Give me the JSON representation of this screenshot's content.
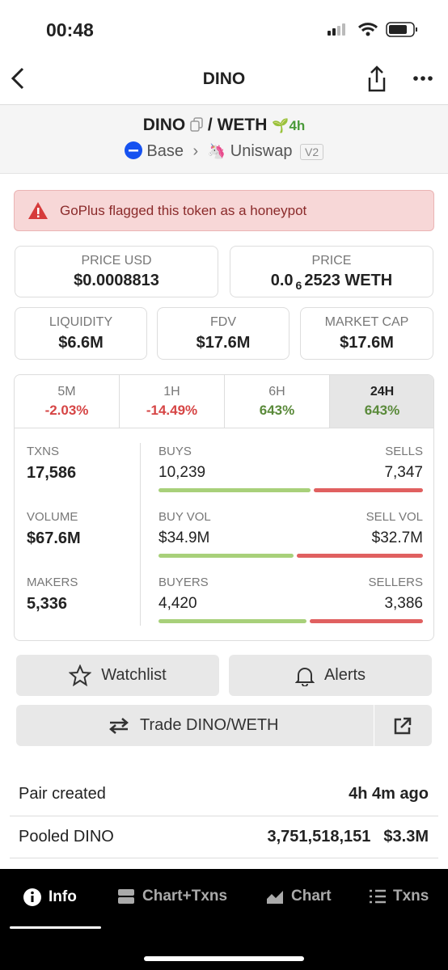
{
  "status_bar": {
    "time": "00:48"
  },
  "header": {
    "title": "DINO"
  },
  "pair": {
    "base": "DINO",
    "separator": "/",
    "quote": "WETH",
    "age": "4h",
    "chain": "Base",
    "dex": "Uniswap",
    "version": "V2"
  },
  "alert": "GoPlus flagged this token as a honeypot",
  "stats": {
    "price_usd": {
      "label": "PRICE USD",
      "value": "$0.0008813"
    },
    "price": {
      "label": "PRICE",
      "value_prefix": "0.0",
      "subscript": "6",
      "value_suffix": "2523 WETH"
    },
    "liquidity": {
      "label": "LIQUIDITY",
      "value": "$6.6M"
    },
    "fdv": {
      "label": "FDV",
      "value": "$17.6M"
    },
    "market_cap": {
      "label": "MARKET CAP",
      "value": "$17.6M"
    }
  },
  "timeframes": [
    {
      "label": "5M",
      "change": "-2.03%"
    },
    {
      "label": "1H",
      "change": "-14.49%"
    },
    {
      "label": "6H",
      "change": "643%"
    },
    {
      "label": "24H",
      "change": "643%"
    }
  ],
  "selected_timeframe": 3,
  "activity": [
    {
      "label": "TXNS",
      "value": "17,586",
      "buy_label": "BUYS",
      "buy_value": "10,239",
      "sell_label": "SELLS",
      "sell_value": "7,347"
    },
    {
      "label": "VOLUME",
      "value": "$67.6M",
      "buy_label": "BUY VOL",
      "buy_value": "$34.9M",
      "sell_label": "SELL VOL",
      "sell_value": "$32.7M"
    },
    {
      "label": "MAKERS",
      "value": "5,336",
      "buy_label": "BUYERS",
      "buy_value": "4,420",
      "sell_label": "SELLERS",
      "sell_value": "3,386"
    }
  ],
  "buttons": {
    "watchlist": "Watchlist",
    "alerts": "Alerts",
    "trade": "Trade DINO/WETH"
  },
  "info": [
    {
      "label": "Pair created",
      "value": "4h 4m ago"
    },
    {
      "label": "Pooled DINO",
      "value": "3,751,518,151",
      "extra": "$3.3M"
    }
  ],
  "tabs": [
    "Info",
    "Chart+Txns",
    "Chart",
    "Txns"
  ]
}
